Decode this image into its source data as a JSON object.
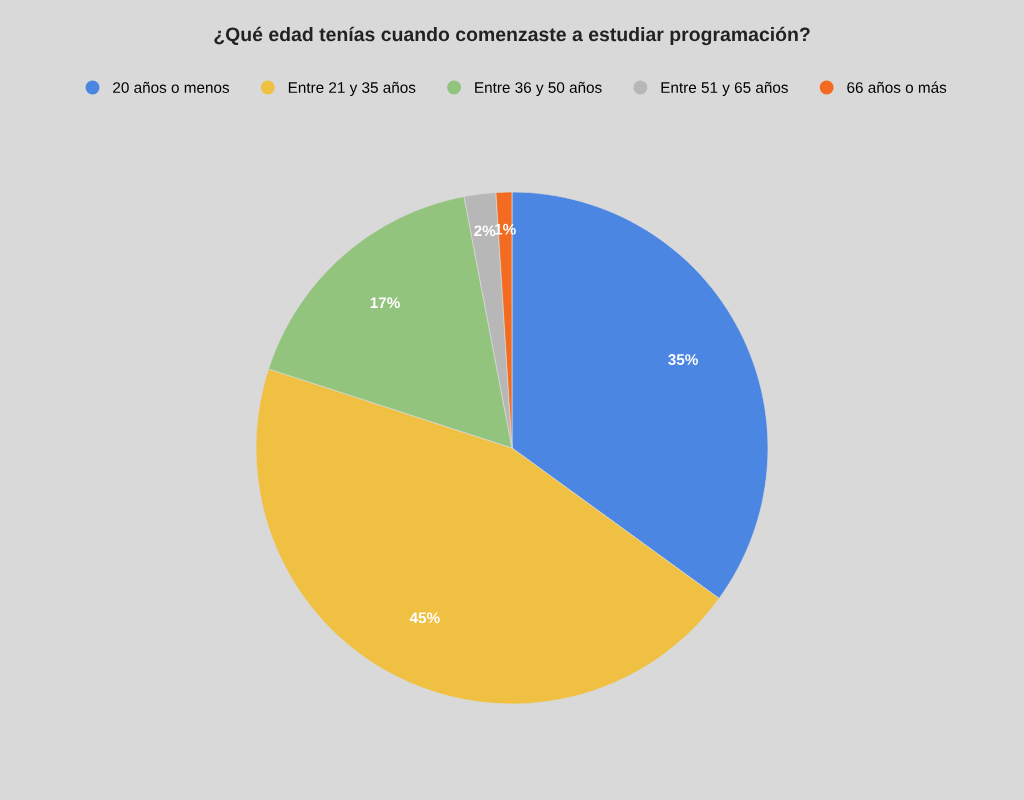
{
  "chart_data": {
    "type": "pie",
    "title": "¿Qué edad tenías cuando comenzaste a estudiar programación?",
    "categories": [
      "20 años o menos",
      "Entre 21 y 35 años",
      "Entre 36 y 50 años",
      "Entre 51 y 65 años",
      "66 años o más"
    ],
    "values": [
      35,
      45,
      17,
      2,
      1
    ],
    "colors": [
      "#4a86e2",
      "#f0c043",
      "#93c47d",
      "#b7b7b7",
      "#f26b21"
    ],
    "value_labels": [
      "35%",
      "45%",
      "17%",
      "2%",
      "1%"
    ],
    "legend": "top"
  }
}
